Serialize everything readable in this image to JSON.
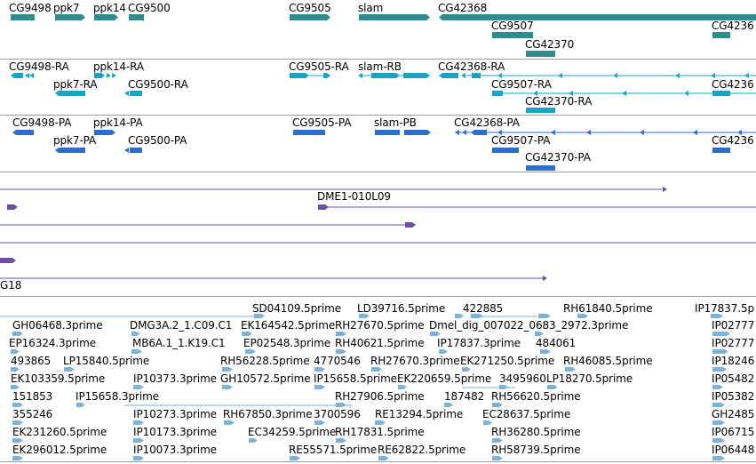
{
  "colors": {
    "gene": "#2f8d8e",
    "transcript_rna": "#16a5c5",
    "transcript_protein": "#2a6dd0",
    "clone": "#6b4fa8",
    "est": "#7ab2dc",
    "separator": "#9a9aa8"
  },
  "tracks": {
    "genes": {
      "labels": [
        "CG9498",
        "ppk7",
        "ppk14",
        "CG9500",
        "CG9505",
        "slam",
        "CG42368",
        "CG9507",
        "CG42370",
        "CG4236"
      ]
    },
    "rna": {
      "labels": [
        "CG9498-RA",
        "ppk14-RA",
        "CG9505-RA",
        "slam-RB",
        "CG42368-RA",
        "ppk7-RA",
        "CG9500-RA",
        "CG9507-RA",
        "CG4236",
        "CG42370-RA"
      ]
    },
    "protein": {
      "labels": [
        "CG9498-PA",
        "ppk14-PA",
        "CG9505-PA",
        "slam-PB",
        "CG42368-PA",
        "ppk7-PA",
        "CG9500-PA",
        "CG9507-PA",
        "CG4236",
        "CG42370-PA"
      ]
    },
    "clones": {
      "labels": [
        "DME1-010L09",
        "G18"
      ]
    },
    "ests": {
      "labels": [
        "SD04109.5prime",
        "LD39716.5prime",
        "422885",
        "RH61840.5prime",
        "IP17837.5p",
        "GH06468.3prime",
        "DMG3A.2_1.C09.C1",
        "EK164542.5prime",
        "RH27670.5prime",
        "Dmel_dig_007022_0683_2972.3prime",
        "IP02777",
        "EP16324.3prime",
        "MB6A.1_1.K19.C1",
        "EP02548.3prime",
        "RH40621.5prime",
        "IP17837.3prime",
        "484061",
        "IP02777",
        "493865",
        "LP15840.5prime",
        "RH56228.5prime",
        "4770546",
        "RH27670.3prime",
        "EK271250.5prime",
        "RH46085.5prime",
        "IP18246",
        "EK103359.5prime",
        "IP10373.3prime",
        "GH10572.5prime",
        "IP15658.5prime",
        "EK220659.5prime",
        "3495960",
        "LP18270.5prime",
        "IP05482",
        "151853",
        "IP15658.3prime",
        "RH27906.5prime",
        "187482",
        "RH56620.5prime",
        "IP05382",
        "355246",
        "IP10273.3prime",
        "RH67850.3prime",
        "3700596",
        "RE13294.5prime",
        "EC28637.5prime",
        "GH2485",
        "EK231260.5prime",
        "IP10173.3prime",
        "EC34259.5prime",
        "RH17831.5prime",
        "RH36280.5prime",
        "IP06715",
        "EK296012.5prime",
        "IP10073.3prime",
        "RE55571.5prime",
        "RE62822.5prime",
        "RH58739.5prime",
        "IP06448"
      ]
    }
  }
}
